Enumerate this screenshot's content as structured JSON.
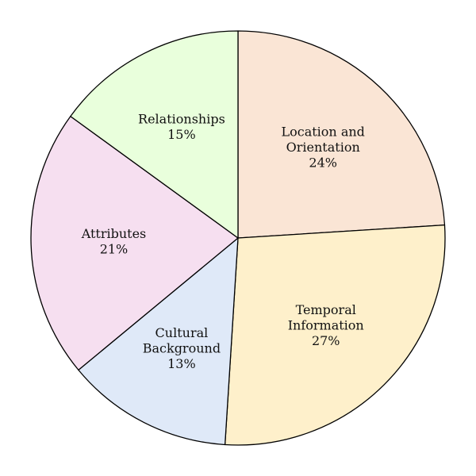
{
  "chart_data": {
    "type": "pie",
    "title": "",
    "start_angle_deg": 90,
    "direction": "clockwise",
    "legend": "none",
    "slices": [
      {
        "label_lines": [
          "Location and",
          "Orientation"
        ],
        "percent_label": "24%",
        "value": 24,
        "color": "#fae5d5"
      },
      {
        "label_lines": [
          "Temporal",
          "Information"
        ],
        "percent_label": "27%",
        "value": 27,
        "color": "#fef0cb"
      },
      {
        "label_lines": [
          "Cultural",
          "Background"
        ],
        "percent_label": "13%",
        "value": 13,
        "color": "#dfe9f8"
      },
      {
        "label_lines": [
          "Attributes"
        ],
        "percent_label": "21%",
        "value": 21,
        "color": "#f6dff0"
      },
      {
        "label_lines": [
          "Relationships"
        ],
        "percent_label": "15%",
        "value": 15,
        "color": "#e9ffdc"
      }
    ]
  }
}
